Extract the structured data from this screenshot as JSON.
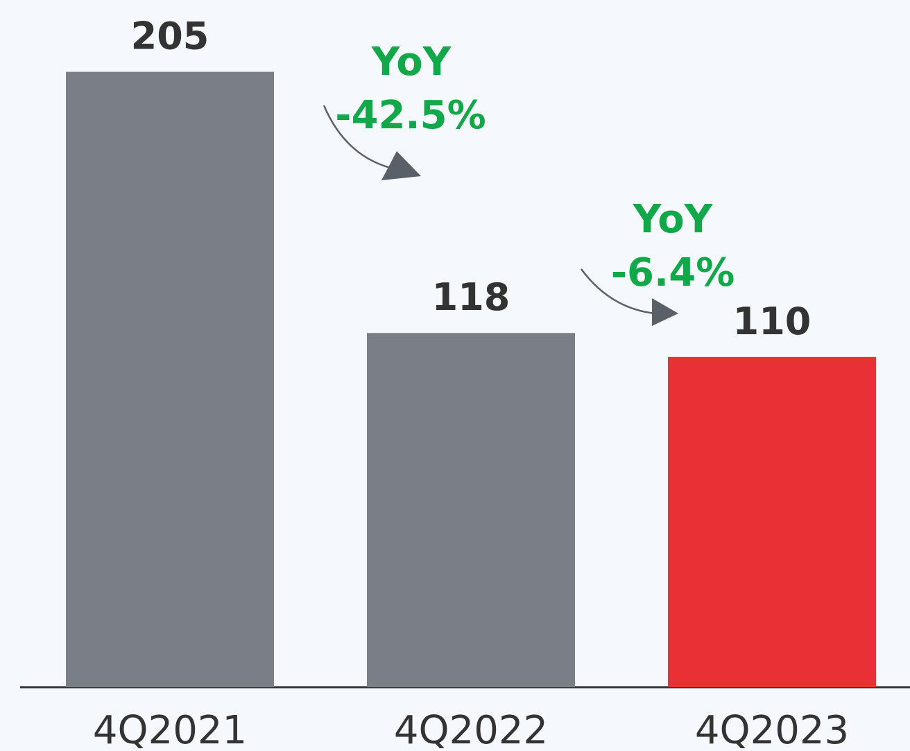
{
  "chart_data": {
    "type": "bar",
    "categories": [
      "4Q2021",
      "4Q2022",
      "4Q2023"
    ],
    "values": [
      205,
      118,
      110
    ],
    "colors": [
      "#7a7f85",
      "#7a7f85",
      "#e83035"
    ],
    "ylim": [
      0,
      225
    ],
    "annotations": [
      {
        "label": "YoY",
        "change": "-42.5%"
      },
      {
        "label": "YoY",
        "change": "-6.4%"
      }
    ]
  }
}
